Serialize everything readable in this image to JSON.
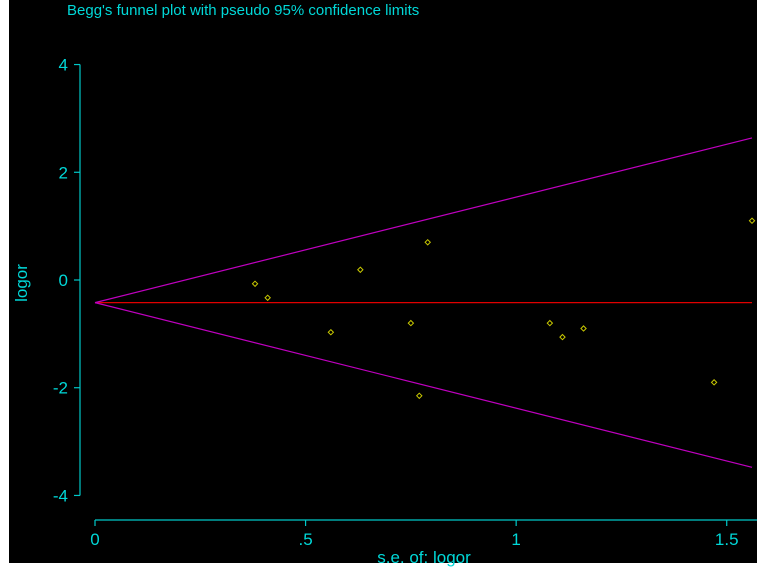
{
  "chart_data": {
    "type": "scatter",
    "title": "Begg's funnel plot with pseudo 95% confidence limits",
    "xlabel": "s.e. of: logor",
    "ylabel": "logor",
    "xlim": [
      0,
      1.56
    ],
    "ylim": [
      -4.4,
      4.4
    ],
    "xticks": [
      0,
      0.5,
      1,
      1.5
    ],
    "xtick_labels": [
      "0",
      ".5",
      "1",
      "1.5"
    ],
    "yticks": [
      4,
      2,
      0,
      -2,
      -4
    ],
    "ytick_labels": [
      "4",
      "2",
      "0",
      "-2",
      "-4"
    ],
    "pooled_estimate": -0.42,
    "pseudo_ci_multiplier": 1.96,
    "grid": false,
    "points": [
      {
        "x": 0.38,
        "y": -0.07
      },
      {
        "x": 0.41,
        "y": -0.33
      },
      {
        "x": 0.56,
        "y": -0.97
      },
      {
        "x": 0.63,
        "y": 0.19
      },
      {
        "x": 0.75,
        "y": -0.8
      },
      {
        "x": 0.77,
        "y": -2.15
      },
      {
        "x": 0.79,
        "y": 0.7
      },
      {
        "x": 1.08,
        "y": -0.8
      },
      {
        "x": 1.11,
        "y": -1.06
      },
      {
        "x": 1.16,
        "y": -0.9
      },
      {
        "x": 1.47,
        "y": -1.9
      },
      {
        "x": 1.56,
        "y": 1.1
      }
    ],
    "colors": {
      "background": "#000000",
      "frame": "#ffffff",
      "axis": "#00c8c8",
      "text": "#00d8d8",
      "points": "#c8c800",
      "pooled_line": "#e00000",
      "ci_lines": "#c000c0"
    }
  }
}
